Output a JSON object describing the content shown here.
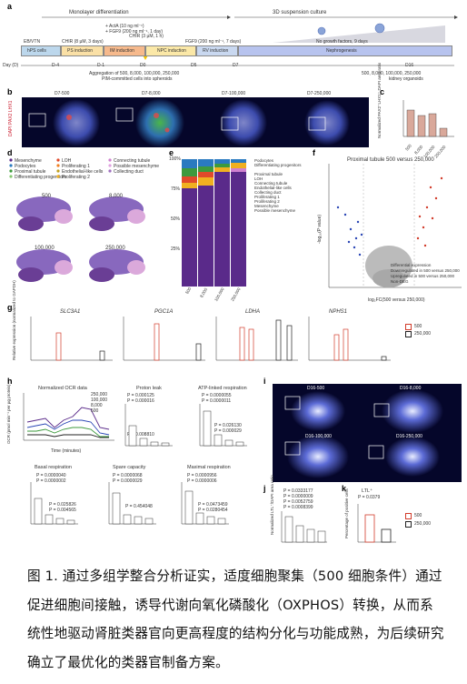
{
  "panel_a": {
    "label": "a",
    "monolayer": "Monolayer differentiation",
    "suspension": "3D suspension culture",
    "stages": [
      "hPS cells",
      "PS induction",
      "IM induction",
      "NPC induction",
      "RV induction",
      "Nephrogenesis"
    ],
    "eb_vtn": "EB/VTN",
    "chir8": "CHIR (8 µM, 3 days)",
    "actA": "+ ActA (10 ng ml⁻¹)",
    "fgf9a": "+ FGF9 (200 ng ml⁻¹, 1 day)",
    "chir3": "CHIR (3 µM, 1 h)",
    "fgf9b": "FGF9 (200 ng ml⁻¹, 7 days)",
    "nogf": "No growth factors, 9 days",
    "day_label": "Day (D)",
    "days": [
      "D-4",
      "D-1",
      "D0",
      "D5",
      "D7",
      "D16"
    ],
    "agg1": "Aggregation of 500, 8,000, 100,000, 250,000",
    "agg2": "PIM-committed cells into spheroids",
    "end1": "500, 8,000, 100,000, 250,000",
    "end2": "kidney organoids"
  },
  "panel_b": {
    "label": "b",
    "titles": [
      "D7-500",
      "D7-8,000",
      "D7-100,000",
      "D7-250,000"
    ],
    "channel": "DAPI PAX2 LHX1"
  },
  "panel_c": {
    "label": "c",
    "ylabel": "Normalized PAX2⁺LHX1⁺ DAPI area ratio",
    "categories": [
      "500",
      "8,000",
      "100,000",
      "250,000"
    ]
  },
  "panel_d": {
    "label": "d",
    "legend": [
      "Mesenchyme",
      "Podocytes",
      "Proximal tubule",
      "Differentiating progenitors",
      "LOH",
      "Proliferating 1",
      "Endothelial-like cells",
      "Proliferating 2",
      "Connecting tubule",
      "Possible mesenchyme",
      "Collecting duct"
    ],
    "titles": [
      "500",
      "8,000",
      "100,000",
      "250,000"
    ]
  },
  "panel_e": {
    "label": "e",
    "yticks": [
      "100%",
      "75%",
      "50%",
      "25%"
    ],
    "categories": [
      "500",
      "8,000",
      "100,000",
      "250,000"
    ],
    "legend": [
      "Podocytes",
      "Differentiating progenitors",
      "Proximal tubule",
      "LOH",
      "Connecting tubule",
      "Endothelial-like cells",
      "Collecting duct",
      "Proliferating 1",
      "Proliferating 2",
      "Mesenchyme",
      "Possible mesenchyme"
    ]
  },
  "panel_f": {
    "label": "f",
    "title": "Proximal tubule 500  versus 250,000",
    "ylabel": "-log₁₀(P value)",
    "xlabel": "log₂FC(500 versus 250,000)",
    "legend_title": "Differential expression",
    "legend": [
      "Downregulated in 500 versus 250,000",
      "Upregulated in 500 versus 250,000",
      "Non-DEG"
    ]
  },
  "panel_g": {
    "label": "g",
    "genes": [
      "SLC3A1",
      "PGC1A",
      "LDHA",
      "NPHS1"
    ],
    "ylabel": "Relative expression (normalized to GAPDH)",
    "legend": [
      "500",
      "250,000"
    ]
  },
  "panel_h": {
    "label": "h",
    "ocr_title": "Normalized OCR data",
    "ocr_legend": [
      "250,000",
      "100,000",
      "8,000",
      "500"
    ],
    "xlabel": "Time (minutes)",
    "ylabel": "OCR (pmol min⁻¹ per µg protein)",
    "subtitles": [
      "Proton leak",
      "ATP-linked respiration",
      "Basal respiration",
      "Spare capacity",
      "Maximal respiration"
    ],
    "pvals": {
      "proton": [
        "P = 0.000125",
        "P = 0.000016",
        "P = 0.008810"
      ],
      "atp": [
        "P = 0.0000055",
        "P = 0.0000011",
        "P = 0.026130",
        "P = 0.000029"
      ],
      "basal": [
        "P = 0.0000040",
        "P = 0.0000002",
        "P = 0.025826",
        "P = 0.004565"
      ],
      "spare": [
        "P = 0.0000068",
        "P = 0.0000029",
        "P = 0.454048"
      ],
      "maximal": [
        "P = 0.0000956",
        "P = 0.0000006",
        "P = 0.0473459",
        "P = 0.0280454"
      ]
    }
  },
  "panel_i": {
    "label": "i",
    "titles": [
      "D16-500",
      "D16-8,000",
      "D16-100,000",
      "D16-250,000"
    ]
  },
  "panel_j": {
    "label": "j",
    "ylabel": "Normalized LTL⁺/DAPI area ratio",
    "pvals": [
      "P = 0.0333177",
      "P = 0.0000009",
      "P = 0.0052759",
      "P = 0.0008399"
    ]
  },
  "panel_k": {
    "label": "k",
    "title": "LTL⁺",
    "pval": "P = 0.0379",
    "ylabel": "Percentage of positive cells",
    "legend": [
      "500",
      "250,000"
    ]
  },
  "caption": "图 1. 通过多组学整合分析证实，适度细胞聚集（500 细胞条件）通过促进细胞间接触，诱导代谢向氧化磷酸化（OXPHOS）转换，从而系统性地驱动肾脏类器官向更高程度的结构分化与功能成熟，为后续研究确立了最优化的类器官制备方案。",
  "colors": {
    "red": "#d23b2a",
    "black": "#222222",
    "purple": "#5a2a8a",
    "blue": "#2a46b5",
    "green": "#3d9a3d"
  }
}
